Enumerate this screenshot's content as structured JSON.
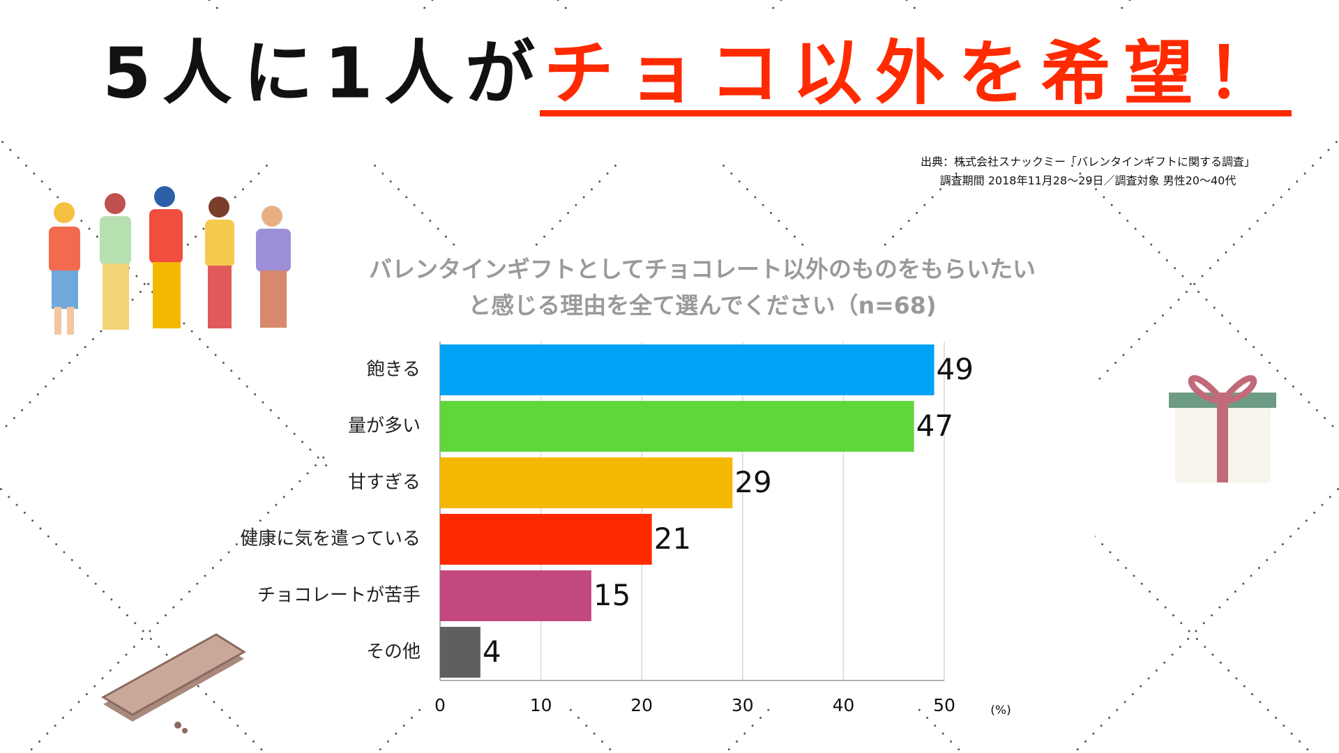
{
  "chart_data": {
    "type": "barh",
    "headline": {
      "lead": "5人に1人が",
      "emphasis": "チョコ以外を希望！"
    },
    "source": [
      "出典：株式会社スナックミー「バレンタインギフトに関する調査」",
      "調査期間 2018年11月28〜29日／調査対象 男性20〜40代"
    ],
    "title": [
      "バレンタインギフトとしてチョコレート以外のものをもらいたい",
      "と感じる理由を全て選んでください（n=68)"
    ],
    "categories": [
      "飽きる",
      "量が多い",
      "甘すぎる",
      "健康に気を遣っている",
      "チョコレートが苦手",
      "その他"
    ],
    "values": [
      49,
      47,
      29,
      21,
      15,
      4
    ],
    "colors": [
      "#00a2f5",
      "#5fd63a",
      "#f5b800",
      "#ff2a00",
      "#c2487f",
      "#5f5f5f"
    ],
    "xlim": [
      0,
      50
    ],
    "xticks": [
      0,
      10,
      20,
      30,
      40,
      50
    ],
    "xlabel": "(%)",
    "grid": true
  }
}
